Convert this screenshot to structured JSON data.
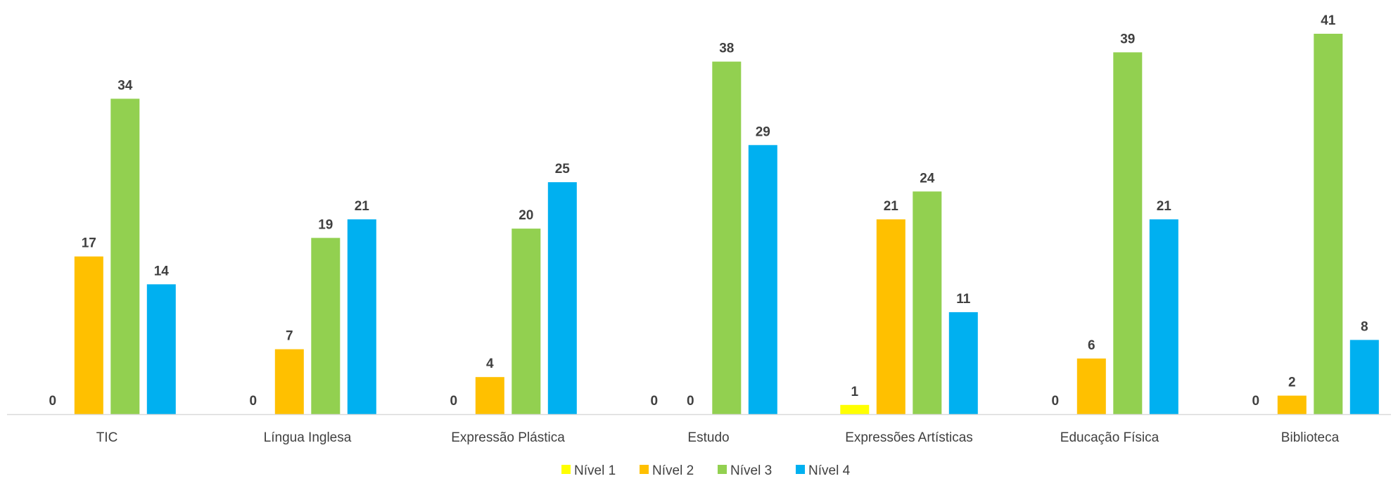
{
  "chart_data": {
    "type": "bar",
    "categories": [
      "TIC",
      "Língua Inglesa",
      "Expressão Plástica",
      "Estudo",
      "Expressões Artísticas",
      "Educação Física",
      "Biblioteca"
    ],
    "series": [
      {
        "name": "Nível 1",
        "color": "#FFFF00",
        "values": [
          0,
          0,
          0,
          0,
          1,
          0,
          0
        ]
      },
      {
        "name": "Nível 2",
        "color": "#FFC000",
        "values": [
          17,
          7,
          4,
          0,
          21,
          6,
          2
        ]
      },
      {
        "name": "Nível 3",
        "color": "#92D050",
        "values": [
          34,
          19,
          20,
          38,
          24,
          39,
          41
        ]
      },
      {
        "name": "Nível 4",
        "color": "#00B0F0",
        "values": [
          14,
          21,
          25,
          29,
          11,
          21,
          8
        ]
      }
    ],
    "ylim": [
      0,
      41
    ],
    "grid": false,
    "legend": "bottom-center",
    "title": "",
    "xlabel": "",
    "ylabel": ""
  }
}
